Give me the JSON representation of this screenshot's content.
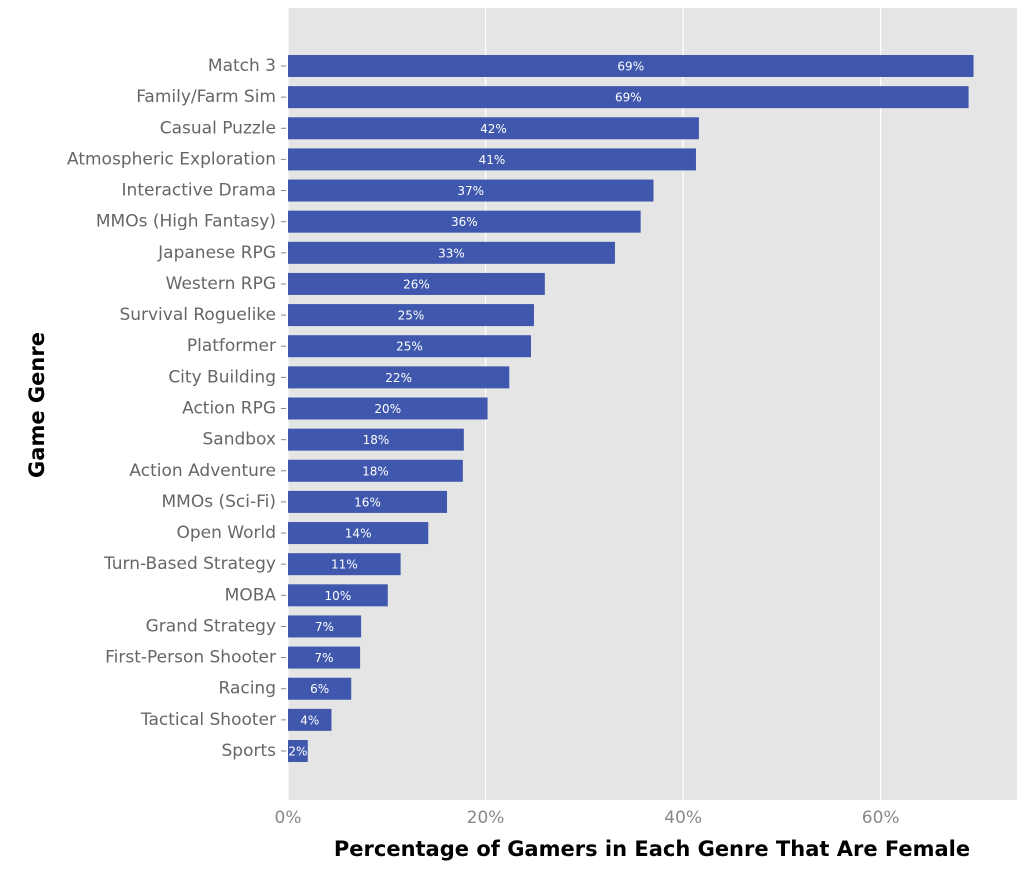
{
  "chart_data": {
    "type": "bar",
    "orientation": "horizontal",
    "x_label": "Percentage of Gamers in Each Genre That Are Female",
    "y_label": "Game Genre",
    "categories": [
      "Match 3",
      "Family/Farm Sim",
      "Casual Puzzle",
      "Atmospheric Exploration",
      "Interactive Drama",
      "MMOs (High Fantasy)",
      "Japanese RPG",
      "Western RPG",
      "Survival Roguelike",
      "Platformer",
      "City Building",
      "Action RPG",
      "Sandbox",
      "Action Adventure",
      "MMOs (Sci-Fi)",
      "Open World",
      "Turn-Based Strategy",
      "MOBA",
      "Grand Strategy",
      "First-Person Shooter",
      "Racing",
      "Tactical Shooter",
      "Sports"
    ],
    "values": [
      69.4,
      68.9,
      41.6,
      41.3,
      37.0,
      35.7,
      33.1,
      26.0,
      24.9,
      24.6,
      22.4,
      20.2,
      17.8,
      17.7,
      16.1,
      14.2,
      11.4,
      10.1,
      7.4,
      7.3,
      6.4,
      4.4,
      2.0
    ],
    "value_labels": [
      "69%",
      "69%",
      "42%",
      "41%",
      "37%",
      "36%",
      "33%",
      "26%",
      "25%",
      "25%",
      "22%",
      "20%",
      "18%",
      "18%",
      "16%",
      "14%",
      "11%",
      "10%",
      "7%",
      "7%",
      "6%",
      "4%",
      "2%"
    ],
    "color": "#3f57ad",
    "xlim": [
      0,
      73.8
    ],
    "xticks": [
      {
        "value": 0,
        "label": "0%"
      },
      {
        "value": 20,
        "label": "20%"
      },
      {
        "value": 40,
        "label": "40%"
      },
      {
        "value": 60,
        "label": "60%"
      }
    ],
    "grid": true
  }
}
